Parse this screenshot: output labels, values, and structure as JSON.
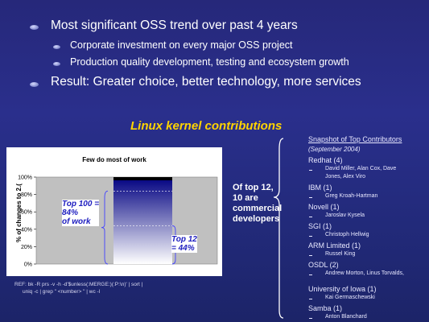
{
  "bullets": {
    "b1": "Most significant OSS trend over past 4 years",
    "b1a": "Corporate investment on every major OSS project",
    "b1b": "Production quality development, testing and ecosystem growth",
    "b2": "Result: Greater choice, better technology, more services"
  },
  "heading": "Linux kernel contributions",
  "chart_data": {
    "type": "bar",
    "title": "Few do most of work",
    "ylabel": "% of changes to 2.6",
    "ylabel_visible": "% of changes to 2.(",
    "yticks": [
      "0%",
      "20%",
      "40%",
      "60%",
      "80%",
      "100%"
    ],
    "ylim": [
      0,
      100
    ],
    "values": [
      100
    ],
    "colors": {
      "top": "#000080",
      "bottom": "#ffffff"
    },
    "markers": [
      84,
      44
    ],
    "callouts": {
      "top100": [
        "Top 100 =",
        "84%",
        "of work"
      ],
      "top12": [
        "Top 12",
        "= 44%"
      ]
    }
  },
  "middle": {
    "lines": [
      "Of top 12,",
      "10 are",
      "commercial",
      "developers"
    ]
  },
  "right": {
    "title": "Snapshot of Top Contributors",
    "date": "(September 2004)",
    "companies": [
      {
        "name": "Redhat (4)",
        "people": [
          "David Miller, Alan Cox, Dave",
          "Jones, Alex Viro"
        ]
      },
      {
        "name": "IBM (1)",
        "people": [
          "Greg Kroah-Hartman"
        ]
      },
      {
        "name": "Novell (1)",
        "people": [
          "Jaroslav Kysela"
        ]
      },
      {
        "name": "SGI (1)",
        "people": [
          "Christoph Hellwig"
        ]
      },
      {
        "name": "ARM Limited (1)",
        "people": [
          "Russel King"
        ]
      },
      {
        "name": "OSDL (2)",
        "people": [
          "Andrew Morton, Linus Torvalds,"
        ]
      },
      {
        "name": "University of Iowa (1)",
        "people": [
          "Kai Germaschewski"
        ]
      },
      {
        "name": "Samba (1)",
        "people": [
          "Anton Blanchard"
        ]
      }
    ]
  },
  "ref": {
    "line1": "REF: bk -R prs -v -h -d'$unless(:MERGE:)(:P:\\n)' | sort |",
    "line2": "uniq -c | grep \" <number> \" | wc -l"
  }
}
